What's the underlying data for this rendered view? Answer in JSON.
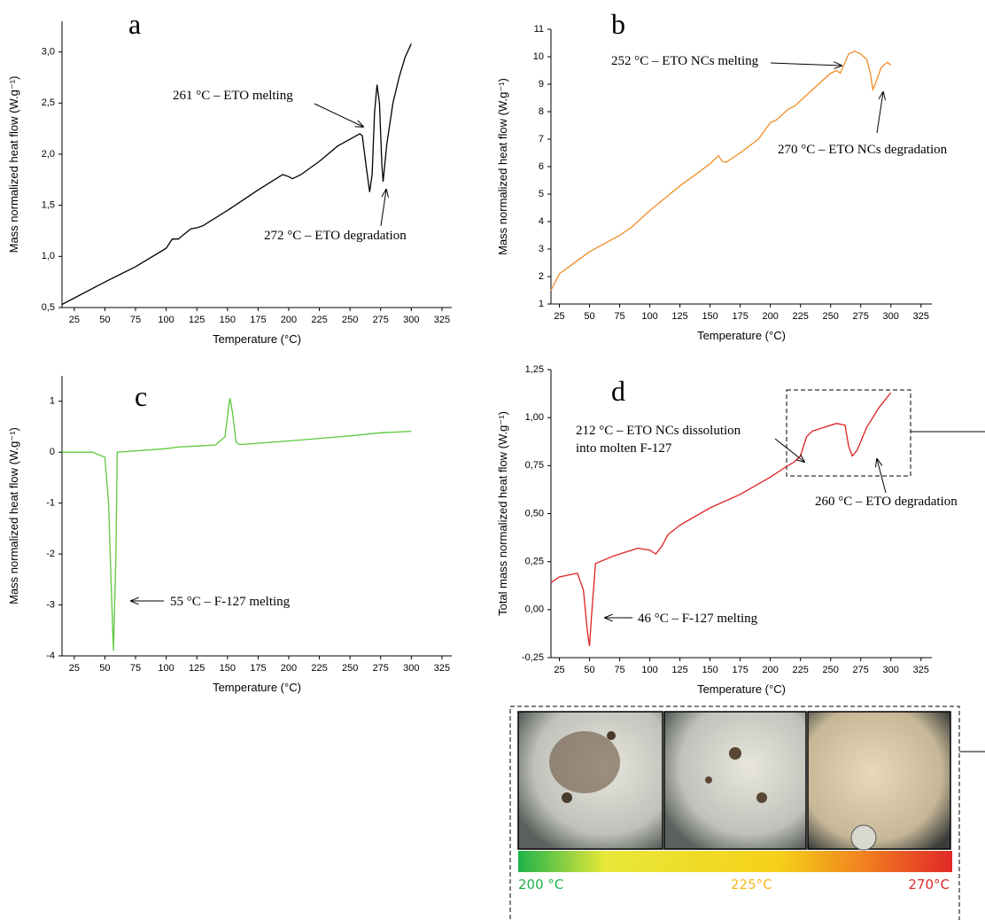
{
  "chart_data": [
    {
      "type": "line",
      "title": "a",
      "x_label": "Temperature (°C)",
      "y_label": "Mass normalized heat flow (W.g⁻¹)",
      "xlim": [
        15,
        333
      ],
      "ylim": [
        0.5,
        3.3
      ],
      "xticks": [
        25,
        50,
        75,
        100,
        125,
        150,
        175,
        200,
        225,
        250,
        275,
        300,
        325
      ],
      "yticks": [
        {
          "value": 0.5,
          "label": "0,5"
        },
        {
          "value": 1,
          "label": "1,0"
        },
        {
          "value": 1.5,
          "label": "1,5"
        },
        {
          "value": 2,
          "label": "2,0"
        },
        {
          "value": 2.5,
          "label": "2,5"
        },
        {
          "value": 3,
          "label": "3,0"
        }
      ],
      "color": "#000000",
      "x": [
        15,
        50,
        75,
        100,
        105,
        110,
        115,
        120,
        125,
        130,
        150,
        175,
        195,
        200,
        203,
        210,
        225,
        240,
        255,
        258,
        260,
        263,
        266,
        268,
        270,
        272,
        274,
        276,
        277,
        280,
        285,
        290,
        295,
        300
      ],
      "values": [
        0.53,
        0.75,
        0.9,
        1.08,
        1.17,
        1.17,
        1.22,
        1.27,
        1.28,
        1.3,
        1.45,
        1.65,
        1.8,
        1.78,
        1.76,
        1.8,
        1.93,
        2.08,
        2.18,
        2.2,
        2.18,
        1.9,
        1.63,
        1.8,
        2.4,
        2.68,
        2.5,
        1.9,
        1.73,
        2.1,
        2.5,
        2.75,
        2.95,
        3.08
      ],
      "annotations": [
        "261 °C – ETO melting",
        "272 °C – ETO degradation"
      ]
    },
    {
      "type": "line",
      "title": "b",
      "x_label": "Temperature (°C)",
      "y_label": "Mass normalized heat flow (W.g⁻¹)",
      "xlim": [
        18,
        334
      ],
      "ylim": [
        1,
        11
      ],
      "xticks": [
        25,
        50,
        75,
        100,
        125,
        150,
        175,
        200,
        225,
        250,
        275,
        300,
        325
      ],
      "yticks": [
        1,
        2,
        3,
        4,
        5,
        6,
        7,
        8,
        9,
        10,
        11
      ],
      "color": "#f08c28",
      "x": [
        18,
        25,
        50,
        75,
        85,
        100,
        125,
        150,
        157,
        160,
        163,
        175,
        190,
        200,
        205,
        215,
        220,
        230,
        250,
        255,
        258,
        262,
        265,
        270,
        275,
        280,
        283,
        285,
        287,
        292,
        297,
        300
      ],
      "values": [
        1.5,
        2.1,
        2.9,
        3.5,
        3.8,
        4.4,
        5.3,
        6.1,
        6.4,
        6.2,
        6.15,
        6.5,
        7.0,
        7.6,
        7.7,
        8.1,
        8.2,
        8.6,
        9.4,
        9.5,
        9.4,
        9.8,
        10.1,
        10.2,
        10.1,
        9.9,
        9.4,
        8.8,
        9.0,
        9.6,
        9.8,
        9.7
      ],
      "annotations": [
        "252 °C – ETO NCs melting",
        "270 °C – ETO NCs degradation"
      ]
    },
    {
      "type": "line",
      "title": "c",
      "x_label": "Temperature (°C)",
      "y_label": "Mass normalized heat flow (W.g⁻¹)",
      "xlim": [
        15,
        333
      ],
      "ylim": [
        -4,
        1.5
      ],
      "xticks": [
        25,
        50,
        75,
        100,
        125,
        150,
        175,
        200,
        225,
        250,
        275,
        300,
        325
      ],
      "yticks": [
        -4,
        -3,
        -2,
        -1,
        0,
        1
      ],
      "color": "#5cc83c",
      "x": [
        15,
        40,
        50,
        53,
        55,
        57,
        59,
        60,
        100,
        110,
        125,
        140,
        148,
        151,
        152,
        154,
        157,
        160,
        200,
        250,
        275,
        300
      ],
      "values": [
        0,
        0,
        -0.1,
        -1,
        -2.5,
        -3.9,
        -2,
        0,
        0.07,
        0.1,
        0.12,
        0.14,
        0.3,
        0.9,
        1.06,
        0.8,
        0.2,
        0.15,
        0.22,
        0.32,
        0.38,
        0.41
      ],
      "annotations": [
        "55 °C – F-127 melting"
      ]
    },
    {
      "type": "line",
      "title": "d",
      "x_label": "Temperature (°C)",
      "y_label": "Total mass normalized heat flow (W.g⁻¹)",
      "xlim": [
        18,
        334
      ],
      "ylim": [
        -0.25,
        1.25
      ],
      "xticks": [
        25,
        50,
        75,
        100,
        125,
        150,
        175,
        200,
        225,
        250,
        275,
        300,
        325
      ],
      "yticks": [
        {
          "value": -0.25,
          "label": "-0,25"
        },
        {
          "value": 0,
          "label": "0,00"
        },
        {
          "value": 0.25,
          "label": "0,25"
        },
        {
          "value": 0.5,
          "label": "0,50"
        },
        {
          "value": 0.75,
          "label": "0,75"
        },
        {
          "value": 1,
          "label": "1,00"
        },
        {
          "value": 1.25,
          "label": "1,25"
        }
      ],
      "color": "#e02020",
      "x": [
        18,
        25,
        40,
        45,
        48,
        50,
        52,
        55,
        70,
        85,
        90,
        100,
        105,
        110,
        115,
        125,
        150,
        175,
        200,
        212,
        220,
        225,
        230,
        235,
        245,
        255,
        262,
        265,
        268,
        272,
        280,
        290,
        300
      ],
      "values": [
        0.14,
        0.17,
        0.19,
        0.1,
        -0.1,
        -0.19,
        0,
        0.24,
        0.28,
        0.31,
        0.32,
        0.31,
        0.29,
        0.33,
        0.39,
        0.44,
        0.53,
        0.6,
        0.69,
        0.74,
        0.77,
        0.8,
        0.9,
        0.93,
        0.95,
        0.97,
        0.96,
        0.85,
        0.8,
        0.83,
        0.95,
        1.05,
        1.13
      ],
      "annotations": [
        "212 °C – ETO NCs dissolution",
        "into molten F-127",
        "260 °C – ETO degradation",
        "46 °C – F-127 melting"
      ]
    }
  ],
  "micrographs": {
    "labels": [
      "200 °C",
      "225°C",
      "270°C"
    ]
  }
}
